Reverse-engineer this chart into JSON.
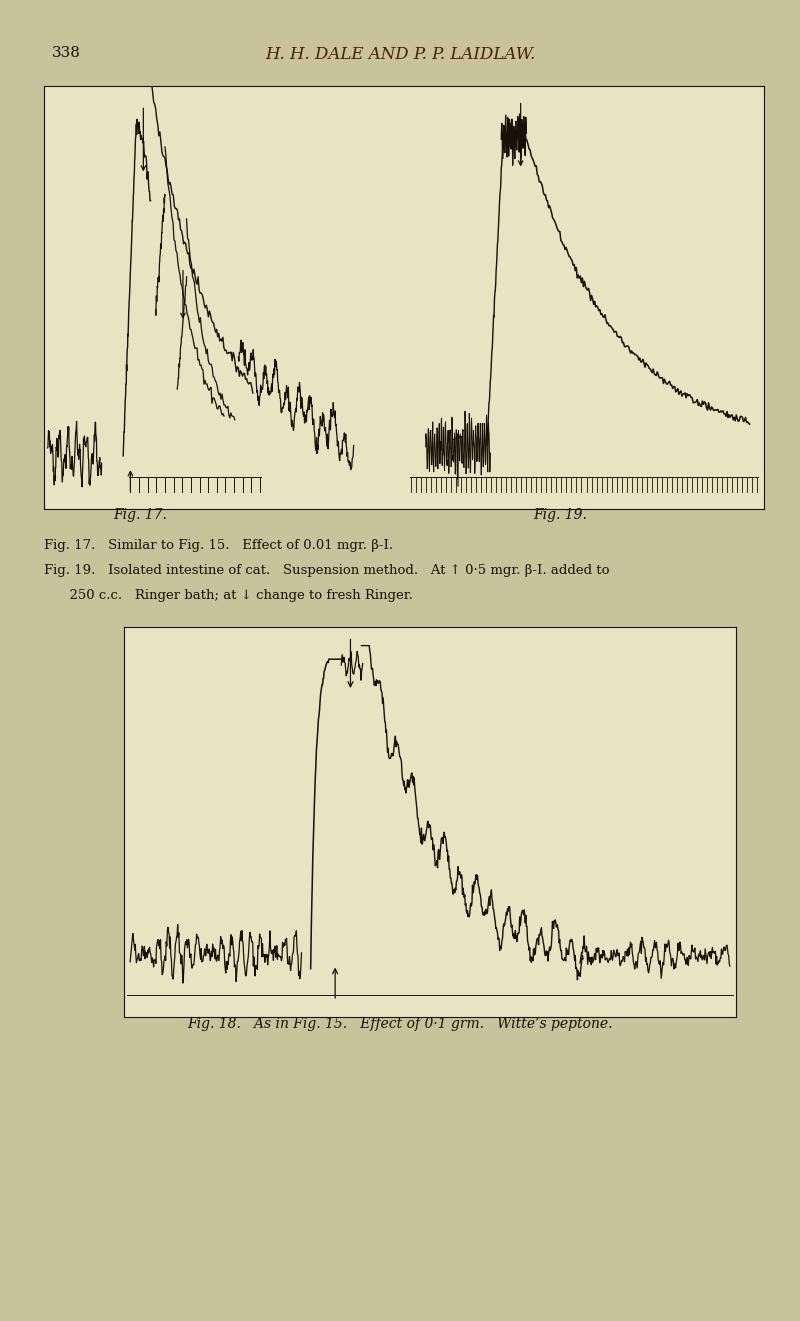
{
  "page_bg": "#c8c39a",
  "inner_bg": "#e8e3c0",
  "line_color": "#1a1008",
  "title_text": "H. H. DALE AND P. P. LAIDLAW.",
  "page_num": "338",
  "panel1_label_left": "Fig. 17.",
  "panel1_label_right": "Fig. 19.",
  "panel2_label": "Fig. 18.",
  "caption1": "Fig. 17.   Similar to Fig. 15.   Effect of 0.01 mgr. β-I.",
  "caption2a": "Fig. 19.   Isolated intestine of cat.   Suspension method.   At ↑ 0·5 mgr. β-I. added to",
  "caption2b": "      250 c.c.   Ringer bath; at ↓ change to fresh Ringer.",
  "caption3": "Fig. 18.   As in Fig. 15.   Effect of 0·1 grm.   Witte’s peptone."
}
